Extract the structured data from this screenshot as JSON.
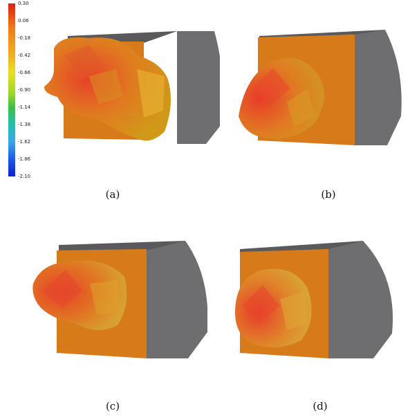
{
  "colorbar": {
    "ticks": [
      "0.30",
      "0.06",
      "-0.18",
      "-0.42",
      "-0.66",
      "-0.90",
      "-1.14",
      "-1.38",
      "-1.62",
      "-1.86",
      "-2.10"
    ]
  },
  "panels": [
    {
      "caption": "(a)"
    },
    {
      "caption": "(b)"
    },
    {
      "caption": "(c)"
    },
    {
      "caption": "(d)"
    }
  ]
}
